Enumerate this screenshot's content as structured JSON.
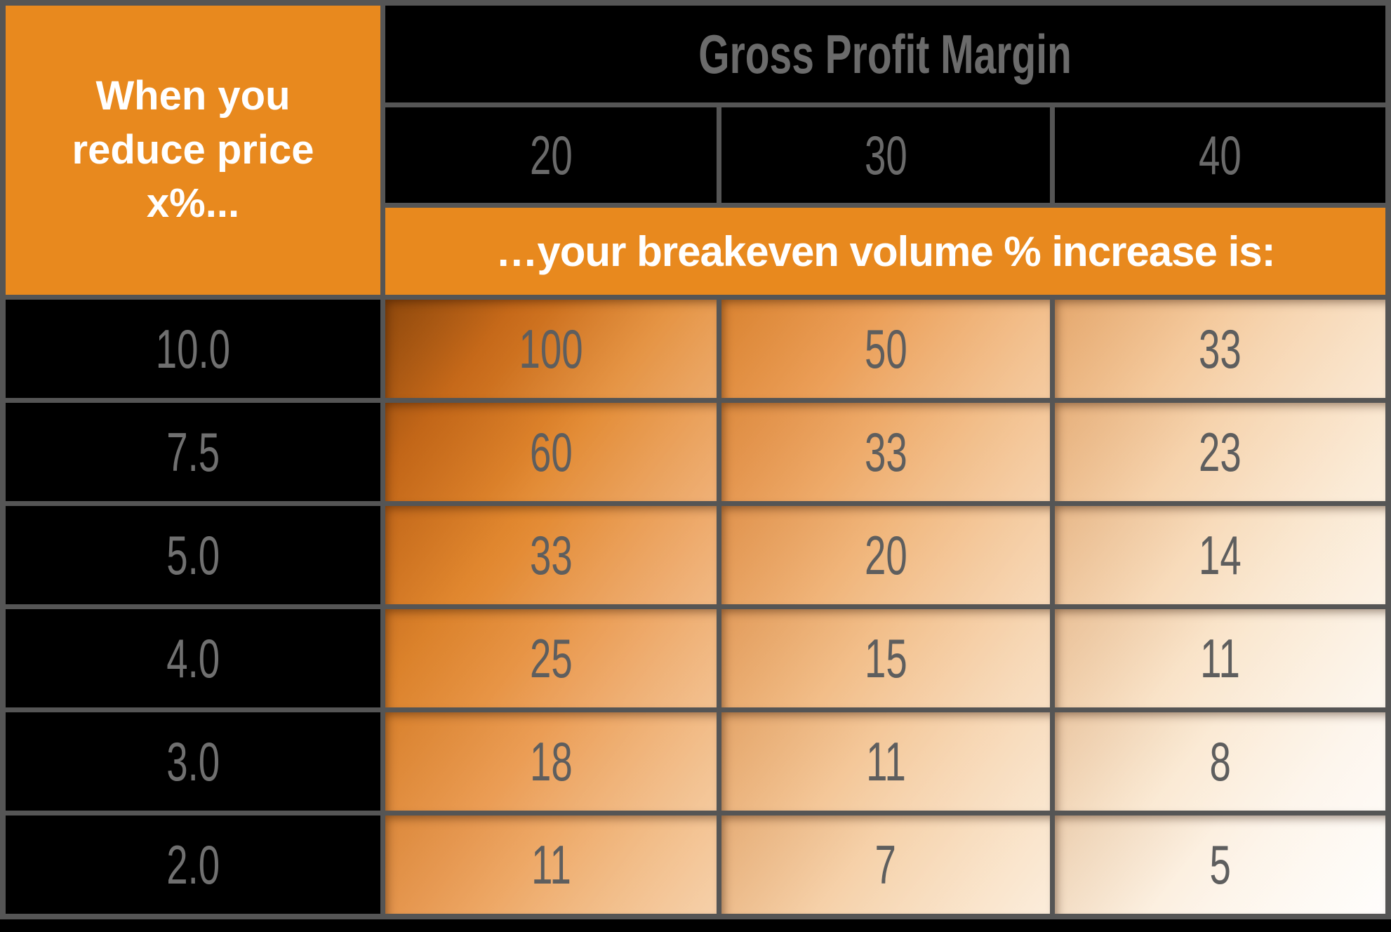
{
  "table": {
    "corner_lines": [
      "When you",
      "reduce price",
      "x%..."
    ],
    "top_header": "Gross Profit Margin",
    "margin_columns": [
      "20",
      "30",
      "40"
    ],
    "banner": "…your breakeven volume % increase is:",
    "rows": [
      {
        "price": "10.0",
        "values": [
          "100",
          "50",
          "33"
        ]
      },
      {
        "price": "7.5",
        "values": [
          "60",
          "33",
          "23"
        ]
      },
      {
        "price": "5.0",
        "values": [
          "33",
          "20",
          "14"
        ]
      },
      {
        "price": "4.0",
        "values": [
          "25",
          "15",
          "11"
        ]
      },
      {
        "price": "3.0",
        "values": [
          "18",
          "11",
          "8"
        ]
      },
      {
        "price": "2.0",
        "values": [
          "11",
          "7",
          "5"
        ]
      }
    ]
  },
  "colors": {
    "accent_orange": "#E8891E",
    "grid_line": "#555555",
    "page_background": "#000000",
    "header_text_gray": "#6b6b6b",
    "data_text_gray": "#5e5e5e",
    "gradient_dark": "#8f4a0e",
    "gradient_light": "#fffdfb"
  },
  "chart_data": {
    "type": "table",
    "title": "Gross Profit Margin",
    "row_header_label": "When you reduce price x%...",
    "banner": "…your breakeven volume % increase is:",
    "columns": [
      20,
      30,
      40
    ],
    "row_categories": [
      10.0,
      7.5,
      5.0,
      4.0,
      3.0,
      2.0
    ],
    "values": [
      [
        100,
        50,
        33
      ],
      [
        60,
        33,
        23
      ],
      [
        33,
        20,
        14
      ],
      [
        25,
        15,
        11
      ],
      [
        18,
        11,
        8
      ],
      [
        11,
        7,
        5
      ]
    ],
    "notes": "Breakeven volume % increase required for a given price reduction at each gross profit margin; cells shaded dark orange (top-left) to white (bottom-right)."
  }
}
